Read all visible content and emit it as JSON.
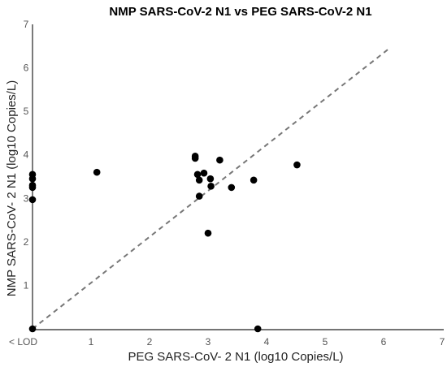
{
  "chart_data": {
    "type": "scatter",
    "title": "NMP SARS-CoV-2 N1 vs  PEG SARS-CoV-2 N1",
    "xlabel": "PEG SARS-CoV- 2 N1 (log10 Copies/L)",
    "ylabel": "NMP SARS-CoV- 2 N1 (log10 Copies/L)",
    "xlim": [
      0,
      7
    ],
    "ylim": [
      0,
      7
    ],
    "x_ticks": [
      "< LOD",
      "1",
      "2",
      "3",
      "4",
      "5",
      "6",
      "7"
    ],
    "y_ticks": [
      "1",
      "2",
      "3",
      "4",
      "5",
      "6",
      "7"
    ],
    "grid": false,
    "reference_line": {
      "style": "dashed",
      "x": [
        0,
        6.1
      ],
      "y": [
        0,
        6.45
      ]
    },
    "points": [
      {
        "x": 0,
        "y": 3.55
      },
      {
        "x": 0,
        "y": 3.45
      },
      {
        "x": 0,
        "y": 3.3
      },
      {
        "x": 0,
        "y": 3.25
      },
      {
        "x": 0,
        "y": 2.97
      },
      {
        "x": 0,
        "y": 0
      },
      {
        "x": 1.1,
        "y": 3.6
      },
      {
        "x": 2.78,
        "y": 3.97
      },
      {
        "x": 2.78,
        "y": 3.92
      },
      {
        "x": 2.82,
        "y": 3.55
      },
      {
        "x": 2.85,
        "y": 3.42
      },
      {
        "x": 2.85,
        "y": 3.05
      },
      {
        "x": 2.93,
        "y": 3.58
      },
      {
        "x": 3.0,
        "y": 2.2
      },
      {
        "x": 3.04,
        "y": 3.45
      },
      {
        "x": 3.05,
        "y": 3.28
      },
      {
        "x": 3.2,
        "y": 3.88
      },
      {
        "x": 3.4,
        "y": 3.25
      },
      {
        "x": 3.78,
        "y": 3.42
      },
      {
        "x": 3.85,
        "y": 0
      },
      {
        "x": 4.52,
        "y": 3.77
      }
    ]
  }
}
